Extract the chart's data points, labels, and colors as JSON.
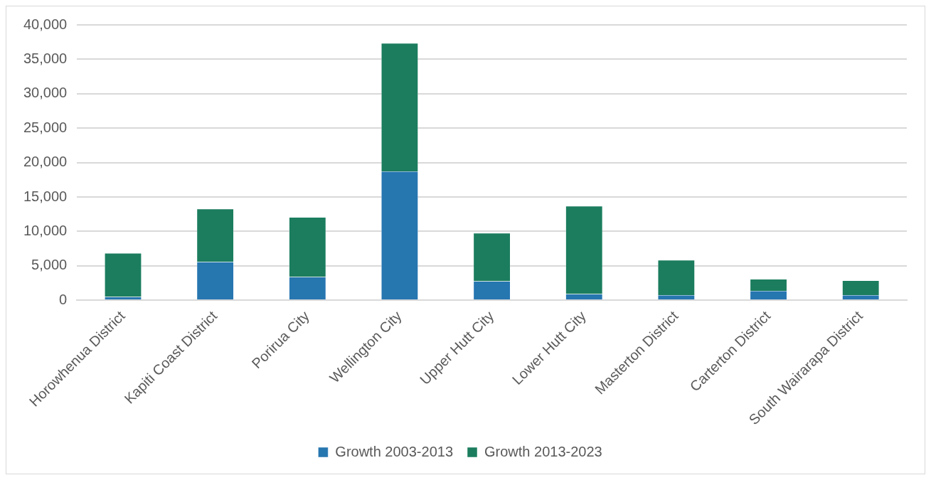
{
  "chart_data": {
    "type": "bar",
    "stacked": true,
    "categories": [
      "Horowhenua District",
      "Kapiti Coast District",
      "Porirua City",
      "Wellington City",
      "Upper Hutt City",
      "Lower Hutt City",
      "Masterton District",
      "Carterton District",
      "South Wairarapa District"
    ],
    "series": [
      {
        "name": "Growth 2003-2013",
        "color": "#2676b0",
        "values": [
          500,
          5570,
          3400,
          18730,
          2770,
          910,
          760,
          1370,
          760
        ]
      },
      {
        "name": "Growth 2013-2023",
        "color": "#1b7d5e",
        "values": [
          6350,
          7710,
          8660,
          18620,
          6990,
          12770,
          5080,
          1720,
          2100
        ]
      }
    ],
    "ylim": [
      0,
      40000
    ],
    "yticks": [
      {
        "value": 0,
        "label": "0"
      },
      {
        "value": 5000,
        "label": "5,000"
      },
      {
        "value": 10000,
        "label": "10,000"
      },
      {
        "value": 15000,
        "label": "15,000"
      },
      {
        "value": 20000,
        "label": "20,000"
      },
      {
        "value": 25000,
        "label": "25,000"
      },
      {
        "value": 30000,
        "label": "30,000"
      },
      {
        "value": 35000,
        "label": "35,000"
      },
      {
        "value": 40000,
        "label": "40,000"
      }
    ],
    "grid": "y",
    "legend": "bottom"
  }
}
